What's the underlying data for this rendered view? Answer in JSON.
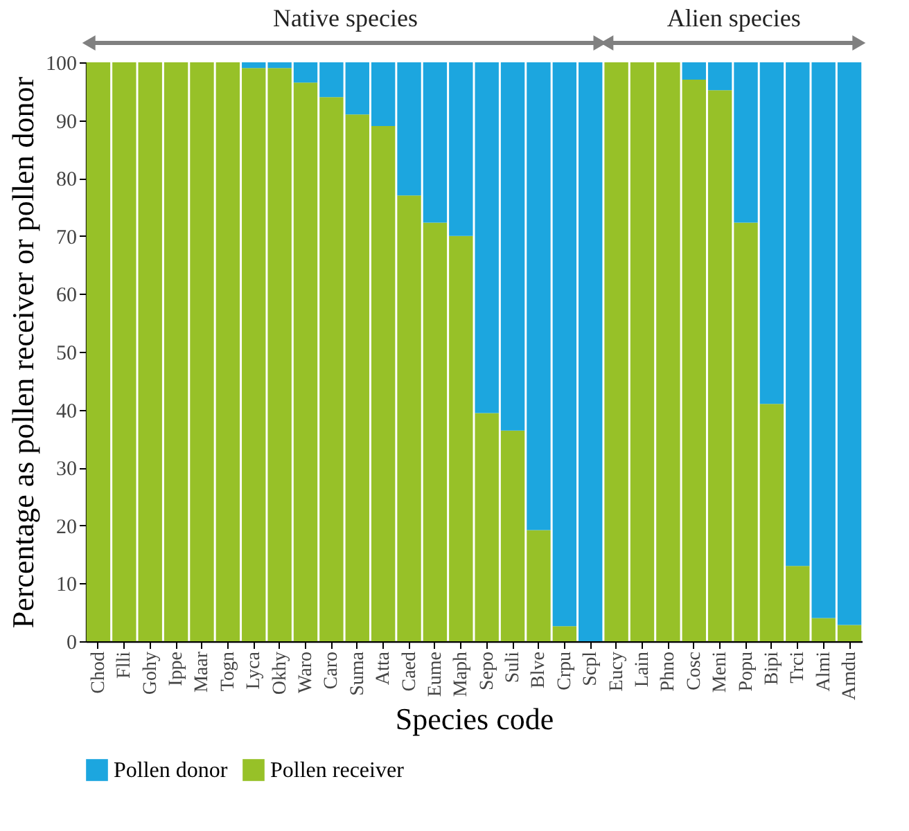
{
  "chart_data": {
    "type": "bar",
    "stacked": true,
    "xlabel": "Species code",
    "ylabel": "Percentage as pollen receiver or pollen donor",
    "categories": [
      "Chod",
      "Flli",
      "Gohy",
      "Ippe",
      "Maar",
      "Togn",
      "Lyca",
      "Okhy",
      "Waro",
      "Caro",
      "Suma",
      "Atta",
      "Caed",
      "Eume",
      "Maph",
      "Sepo",
      "Suli",
      "Blve",
      "Crpu",
      "Scpl",
      "Eucy",
      "Lain",
      "Phno",
      "Cosc",
      "Meni",
      "Popu",
      "Bipi",
      "Trci",
      "Almi",
      "Amdu"
    ],
    "series": [
      {
        "name": "Pollen receiver",
        "color": "#97c128",
        "values": [
          100,
          100,
          100,
          100,
          100,
          100,
          99,
          99,
          96.5,
          94,
          91,
          89,
          77,
          72.3,
          70,
          39.4,
          36.4,
          19.2,
          2.6,
          0,
          100,
          100,
          100,
          97,
          95.2,
          72.3,
          41,
          13,
          4,
          2.8
        ]
      },
      {
        "name": "Pollen donor",
        "color": "#1ca6df",
        "values": [
          0,
          0,
          0,
          0,
          0,
          0,
          1,
          1,
          3.5,
          6,
          9,
          11,
          23,
          27.7,
          30,
          60.6,
          63.6,
          80.8,
          97.4,
          100,
          0,
          0,
          0,
          3,
          4.8,
          27.7,
          59,
          87,
          96,
          97.2
        ]
      }
    ],
    "ylim": [
      0,
      100
    ],
    "yticks": [
      0,
      10,
      20,
      30,
      40,
      50,
      60,
      70,
      80,
      90,
      100
    ],
    "grid": false,
    "legend": "bottom",
    "annotations": [
      "Native species",
      "Alien species"
    ]
  }
}
